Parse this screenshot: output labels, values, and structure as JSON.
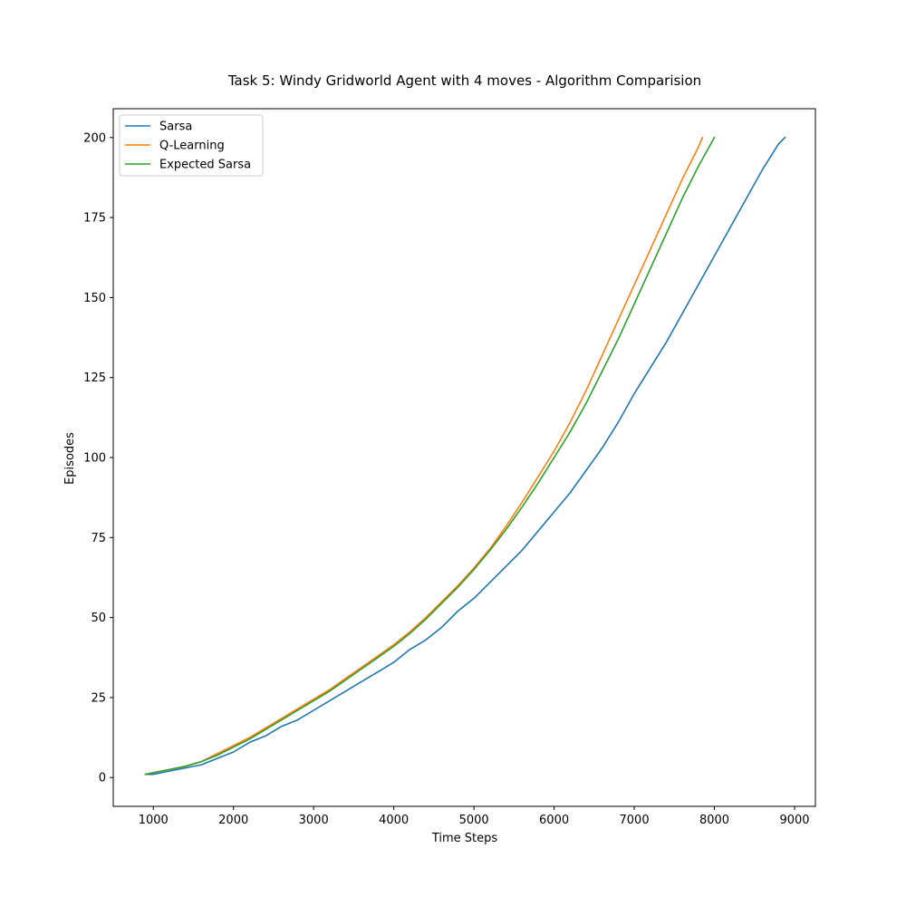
{
  "chart_data": {
    "type": "line",
    "title": "Task 5: Windy Gridworld Agent with 4 moves - Algorithm Comparision",
    "xlabel": "Time Steps",
    "ylabel": "Episodes",
    "xlim": [
      500,
      9260
    ],
    "ylim": [
      -9,
      209
    ],
    "xticks": [
      1000,
      2000,
      3000,
      4000,
      5000,
      6000,
      7000,
      8000,
      9000
    ],
    "yticks": [
      0,
      25,
      50,
      75,
      100,
      125,
      150,
      175,
      200
    ],
    "grid": false,
    "legend_position": "upper-left",
    "series": [
      {
        "name": "Sarsa",
        "color": "#1f77b4",
        "x": [
          900,
          1000,
          1200,
          1400,
          1600,
          1800,
          2000,
          2200,
          2400,
          2600,
          2800,
          3000,
          3200,
          3400,
          3600,
          3800,
          4000,
          4200,
          4400,
          4600,
          4800,
          5000,
          5200,
          5400,
          5600,
          5800,
          6000,
          6200,
          6400,
          6600,
          6800,
          7000,
          7200,
          7400,
          7600,
          7800,
          8000,
          8200,
          8400,
          8600,
          8800,
          8880
        ],
        "values": [
          1,
          1,
          2,
          3,
          4,
          6,
          8,
          11,
          13,
          16,
          18,
          21,
          24,
          27,
          30,
          33,
          36,
          40,
          43,
          47,
          52,
          56,
          61,
          66,
          71,
          77,
          83,
          89,
          96,
          103,
          111,
          120,
          128,
          136,
          145,
          154,
          163,
          172,
          181,
          190,
          198,
          200
        ]
      },
      {
        "name": "Q-Learning",
        "color": "#ff7f0e",
        "x": [
          900,
          1000,
          1200,
          1400,
          1600,
          1800,
          2000,
          2200,
          2400,
          2600,
          2800,
          3000,
          3200,
          3400,
          3600,
          3800,
          4000,
          4200,
          4400,
          4600,
          4800,
          5000,
          5200,
          5400,
          5600,
          5800,
          6000,
          6200,
          6400,
          6600,
          6800,
          7000,
          7200,
          7400,
          7600,
          7800,
          7850
        ],
        "values": [
          1,
          1.5,
          2.5,
          3.5,
          5,
          7.5,
          10,
          12.5,
          15.5,
          18.5,
          21.5,
          24.5,
          27.5,
          31,
          34.5,
          38,
          41.5,
          45.5,
          50,
          55,
          60,
          65.5,
          71.5,
          78.5,
          86,
          94,
          102,
          111,
          121,
          132,
          143,
          154,
          165,
          176,
          187,
          197,
          200
        ]
      },
      {
        "name": "Expected Sarsa",
        "color": "#2ca02c",
        "x": [
          900,
          1000,
          1200,
          1400,
          1600,
          1800,
          2000,
          2200,
          2400,
          2600,
          2800,
          3000,
          3200,
          3400,
          3600,
          3800,
          4000,
          4200,
          4400,
          4600,
          4800,
          5000,
          5200,
          5400,
          5600,
          5800,
          6000,
          6200,
          6400,
          6600,
          6800,
          7000,
          7200,
          7400,
          7600,
          7800,
          8000
        ],
        "values": [
          1,
          1.5,
          2.5,
          3.5,
          5,
          7,
          9.5,
          12,
          15,
          18,
          21,
          24,
          27,
          30.5,
          34,
          37.5,
          41,
          45,
          49.5,
          54.5,
          59.5,
          65,
          71,
          77.5,
          84.5,
          92,
          100,
          108,
          117,
          127,
          137,
          148,
          159,
          170,
          181,
          191,
          200
        ]
      }
    ]
  }
}
